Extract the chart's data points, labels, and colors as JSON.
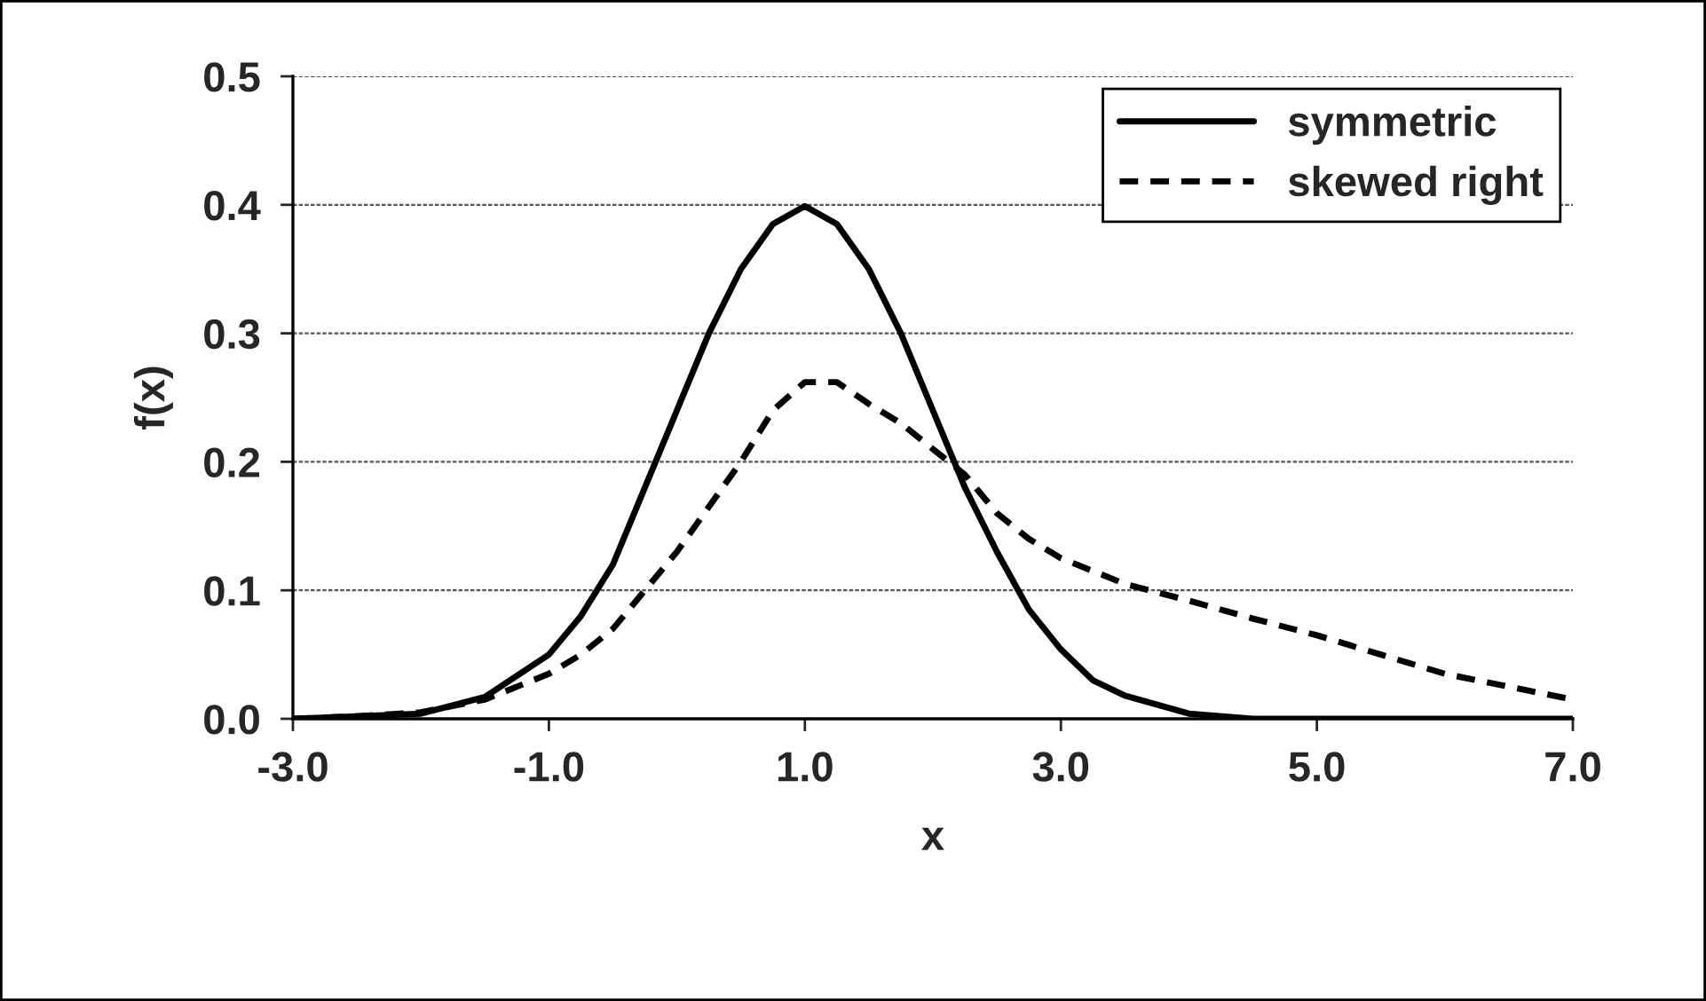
{
  "chart_data": {
    "type": "line",
    "xlabel": "x",
    "ylabel": "f(x)",
    "xlim": [
      -3,
      7
    ],
    "xticks": [
      {
        "value": -3,
        "label": "-3.0"
      },
      {
        "value": -1,
        "label": "-1.0"
      },
      {
        "value": 1,
        "label": "1.0"
      },
      {
        "value": 3,
        "label": "3.0"
      },
      {
        "value": 5,
        "label": "5.0"
      },
      {
        "value": 7,
        "label": "7.0"
      }
    ],
    "ylim": [
      0,
      0.5
    ],
    "yticks": [
      {
        "value": 0,
        "label": "0.0"
      },
      {
        "value": 0.1,
        "label": "0.1"
      },
      {
        "value": 0.2,
        "label": "0.2"
      },
      {
        "value": 0.3,
        "label": "0.3"
      },
      {
        "value": 0.4,
        "label": "0.4"
      },
      {
        "value": 0.5,
        "label": "0.5"
      }
    ],
    "grid": "y",
    "legend": "top right",
    "series": [
      {
        "name": "symmetric",
        "color": "#000000",
        "line_style": "solid",
        "x": [
          -3,
          -2.5,
          -2,
          -1.5,
          -1,
          -0.75,
          -0.5,
          -0.25,
          0,
          0.25,
          0.5,
          0.75,
          1,
          1.25,
          1.5,
          1.75,
          2,
          2.25,
          2.5,
          2.75,
          3,
          3.25,
          3.5,
          4,
          4.5,
          5,
          6,
          7
        ],
        "values": [
          0.0,
          0.002,
          0.004,
          0.017,
          0.05,
          0.08,
          0.12,
          0.18,
          0.24,
          0.3,
          0.35,
          0.385,
          0.399,
          0.385,
          0.35,
          0.3,
          0.24,
          0.18,
          0.13,
          0.085,
          0.054,
          0.03,
          0.018,
          0.004,
          0.0,
          0.0,
          0.0,
          0.0
        ]
      },
      {
        "name": "skewed right",
        "color": "#000000",
        "line_style": "dashed",
        "x": [
          -3,
          -2.5,
          -2,
          -1.5,
          -1,
          -0.75,
          -0.5,
          -0.25,
          0,
          0.25,
          0.5,
          0.75,
          1,
          1.25,
          1.5,
          1.75,
          2,
          2.25,
          2.5,
          2.75,
          3,
          3.5,
          4,
          4.5,
          5,
          5.5,
          6,
          6.5,
          7
        ],
        "values": [
          0.0,
          0.002,
          0.005,
          0.015,
          0.035,
          0.05,
          0.07,
          0.1,
          0.13,
          0.165,
          0.2,
          0.24,
          0.262,
          0.262,
          0.245,
          0.23,
          0.21,
          0.19,
          0.16,
          0.14,
          0.125,
          0.105,
          0.092,
          0.078,
          0.065,
          0.05,
          0.035,
          0.025,
          0.015
        ]
      }
    ]
  }
}
